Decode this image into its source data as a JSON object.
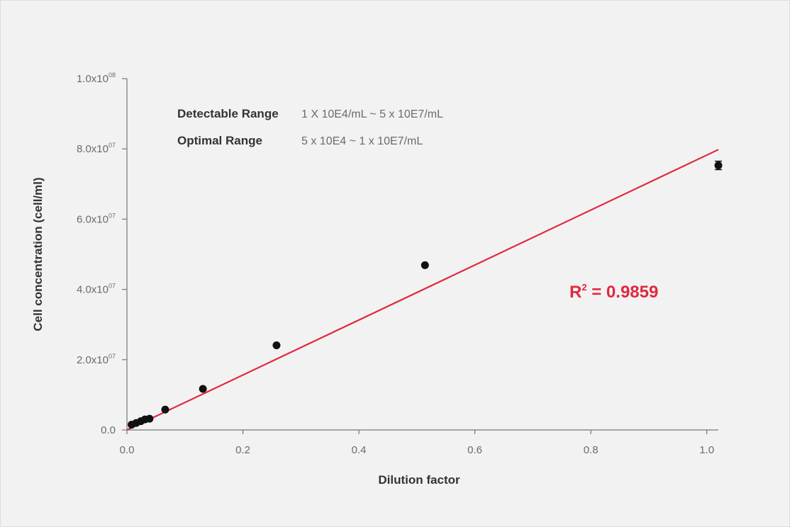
{
  "chart_data": {
    "type": "scatter",
    "xlabel": "Dilution factor",
    "ylabel": "Cell concentration (cell/ml)",
    "xlim": [
      0,
      1.02
    ],
    "ylim": [
      0,
      100000000
    ],
    "x_ticks": [
      {
        "value": 0.0,
        "label": "0.0"
      },
      {
        "value": 0.2,
        "label": "0.2"
      },
      {
        "value": 0.4,
        "label": "0.4"
      },
      {
        "value": 0.6,
        "label": "0.6"
      },
      {
        "value": 0.8,
        "label": "0.8"
      },
      {
        "value": 1.0,
        "label": "1.0"
      }
    ],
    "y_ticks": [
      {
        "value": 0,
        "mantissa": "0.0",
        "exponent": ""
      },
      {
        "value": 20000000,
        "mantissa": "2.0x10",
        "exponent": "07"
      },
      {
        "value": 40000000,
        "mantissa": "4.0x10",
        "exponent": "07"
      },
      {
        "value": 60000000,
        "mantissa": "6.0x10",
        "exponent": "07"
      },
      {
        "value": 80000000,
        "mantissa": "8.0x10",
        "exponent": "07"
      },
      {
        "value": 100000000,
        "mantissa": "1.0x10",
        "exponent": "08"
      }
    ],
    "series": [
      {
        "points": [
          {
            "x": 0.008,
            "y": 1500000
          },
          {
            "x": 0.016,
            "y": 2000000
          },
          {
            "x": 0.024,
            "y": 2500000
          },
          {
            "x": 0.031,
            "y": 3000000
          },
          {
            "x": 0.039,
            "y": 3200000
          },
          {
            "x": 0.066,
            "y": 5800000
          },
          {
            "x": 0.131,
            "y": 11700000
          },
          {
            "x": 0.258,
            "y": 24100000
          },
          {
            "x": 0.514,
            "y": 46900000
          },
          {
            "x": 1.02,
            "y": 75300000,
            "error": 1200000
          }
        ],
        "color": "#111111"
      }
    ],
    "fit_line": {
      "x": [
        0.0,
        1.02
      ],
      "y": [
        0,
        79800000
      ],
      "color": "#e0293f",
      "r2_label": "R",
      "r2_sup": "2",
      "r2_value": " = 0.9859"
    },
    "annotations": [
      {
        "label": "Detectable Range",
        "value": "1 X 10E4/mL ~ 5 x 10E7/mL"
      },
      {
        "label": "Optimal Range",
        "value": "5 x 10E4 ~ 1 x 10E7/mL"
      }
    ],
    "grid": false,
    "colors": {
      "axis": "#777777",
      "points": "#111111",
      "fit": "#e0293f",
      "background": "#f2f2f2"
    }
  }
}
